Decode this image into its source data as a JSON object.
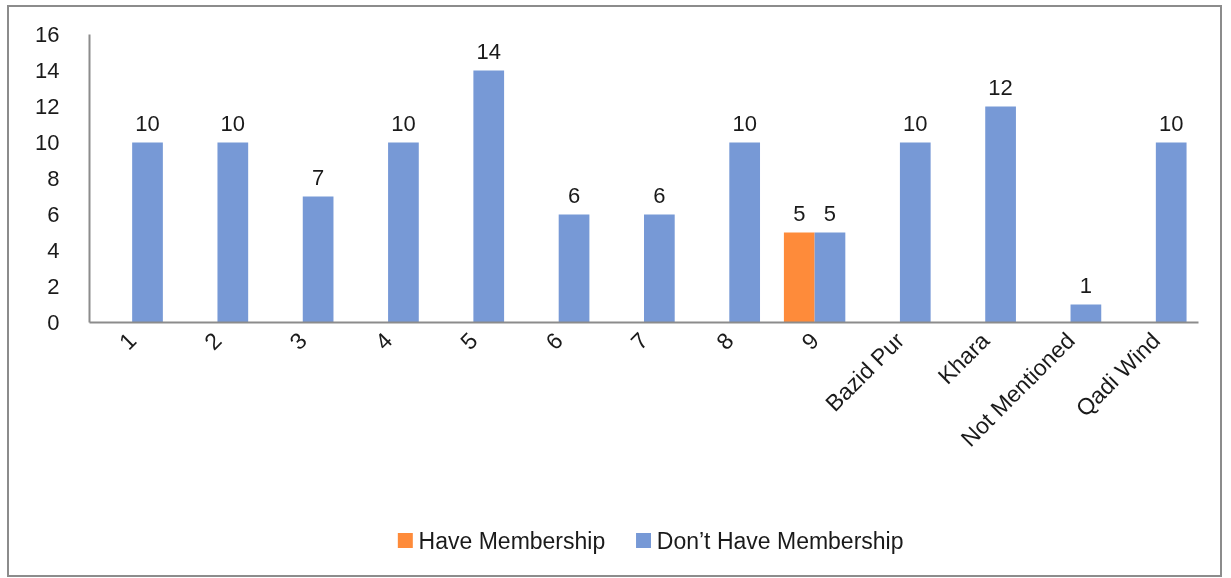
{
  "chart_data": {
    "type": "bar",
    "categories": [
      "1",
      "2",
      "3",
      "4",
      "5",
      "6",
      "7",
      "8",
      "9",
      "Bazid Pur",
      "Khara",
      "Not Mentioned",
      "Qadi Wind"
    ],
    "series": [
      {
        "name": "Have Membership",
        "color": "#fe8b3a",
        "values": [
          null,
          null,
          null,
          null,
          null,
          null,
          null,
          null,
          5,
          null,
          null,
          null,
          null
        ]
      },
      {
        "name": "Don’t Have Membership",
        "color": "#7799d6",
        "values": [
          10,
          10,
          7,
          10,
          14,
          6,
          6,
          10,
          5,
          10,
          12,
          1,
          10
        ]
      }
    ],
    "ylim": [
      0,
      16
    ],
    "yticks": [
      0,
      2,
      4,
      6,
      8,
      10,
      12,
      14,
      16
    ],
    "data_labels": true,
    "grid": false,
    "legend": "bottom"
  }
}
